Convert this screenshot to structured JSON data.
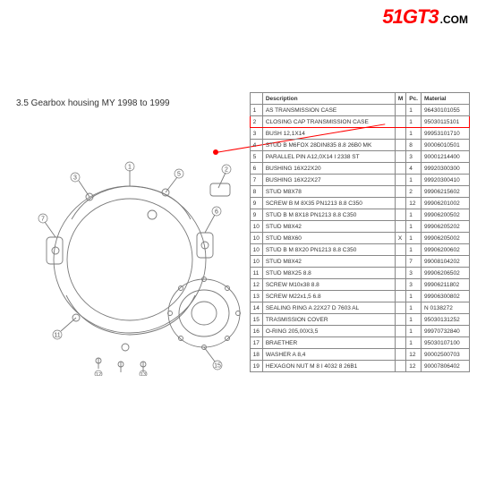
{
  "logo": {
    "main": "51GT3",
    "suffix": ".COM"
  },
  "section_title": "3.5  Gearbox housing MY 1998 to 1999",
  "diagram": {
    "description": "Exploded technical line drawing of a gearbox housing with numbered callouts",
    "stroke": "#7a7a7a",
    "stroke_width": 0.8,
    "callouts": [
      1,
      2,
      3,
      4,
      5,
      6,
      7,
      8,
      9,
      10,
      11,
      12,
      13,
      14,
      15,
      16,
      17,
      18,
      19
    ]
  },
  "callout": {
    "highlight_row_index": 2,
    "line_color": "#ff0000"
  },
  "table": {
    "columns": [
      "",
      "Description",
      "M",
      "Pc.",
      "Material"
    ],
    "rows": [
      {
        "idx": "1",
        "desc": "AS TRANSMISSION CASE",
        "m": "",
        "pc": "1",
        "mat": "96430101055"
      },
      {
        "idx": "2",
        "desc": "CLOSING CAP TRANSMISSION CASE",
        "m": "",
        "pc": "1",
        "mat": "95030115101"
      },
      {
        "idx": "3",
        "desc": "BUSH 12,1X14",
        "m": "",
        "pc": "1",
        "mat": "99953101710"
      },
      {
        "idx": "4",
        "desc": "STUD B M6FOX 28DIN835 8.8 26B0 MK",
        "m": "",
        "pc": "8",
        "mat": "90006010501"
      },
      {
        "idx": "5",
        "desc": "PARALLEL PIN A12,0X14 I 2338 ST",
        "m": "",
        "pc": "3",
        "mat": "90001214400"
      },
      {
        "idx": "6",
        "desc": "BUSHING 16X22X20",
        "m": "",
        "pc": "4",
        "mat": "99920300300"
      },
      {
        "idx": "7",
        "desc": "BUSHING 16X22X27",
        "m": "",
        "pc": "1",
        "mat": "99920300410"
      },
      {
        "idx": "8",
        "desc": "STUD M8X78",
        "m": "",
        "pc": "2",
        "mat": "99906215602"
      },
      {
        "idx": "9",
        "desc": "SCREW B M 8X35 PN1213 8.8 C350",
        "m": "",
        "pc": "12",
        "mat": "99906201002"
      },
      {
        "idx": "9",
        "desc": "STUD B M 8X18 PN1213 8.8 C350",
        "m": "",
        "pc": "1",
        "mat": "99906200502"
      },
      {
        "idx": "10",
        "desc": "STUD M8X42",
        "m": "",
        "pc": "1",
        "mat": "99906205202"
      },
      {
        "idx": "10",
        "desc": "STUD M8X60",
        "m": "X",
        "pc": "1",
        "mat": "99906205002"
      },
      {
        "idx": "10",
        "desc": "STUD B M 8X20 PN1213 8.8 C350",
        "m": "",
        "pc": "1",
        "mat": "99906200602"
      },
      {
        "idx": "10",
        "desc": "STUD M8X42",
        "m": "",
        "pc": "7",
        "mat": "99008104202"
      },
      {
        "idx": "11",
        "desc": "STUD M8X25 8.8",
        "m": "",
        "pc": "3",
        "mat": "99906206502"
      },
      {
        "idx": "12",
        "desc": "SCREW M10x38 8.8",
        "m": "",
        "pc": "3",
        "mat": "99906211802"
      },
      {
        "idx": "13",
        "desc": "SCREW M22x1,5 6.8",
        "m": "",
        "pc": "1",
        "mat": "99906300802"
      },
      {
        "idx": "14",
        "desc": "SEALING RING A 22X27 D 7603 AL",
        "m": "",
        "pc": "1",
        "mat": "N 0138272"
      },
      {
        "idx": "15",
        "desc": "TRASMISSION COVER",
        "m": "",
        "pc": "1",
        "mat": "95030131252"
      },
      {
        "idx": "16",
        "desc": "O-RING 205,00X3,5",
        "m": "",
        "pc": "1",
        "mat": "99970732840"
      },
      {
        "idx": "17",
        "desc": "BRAETHER",
        "m": "",
        "pc": "1",
        "mat": "95030107100"
      },
      {
        "idx": "18",
        "desc": "WASHER A 8,4",
        "m": "",
        "pc": "12",
        "mat": "90002500703"
      },
      {
        "idx": "19",
        "desc": "HEXAGON NUT M 8 I 4032 8 26B1",
        "m": "",
        "pc": "12",
        "mat": "90007806402"
      }
    ]
  }
}
